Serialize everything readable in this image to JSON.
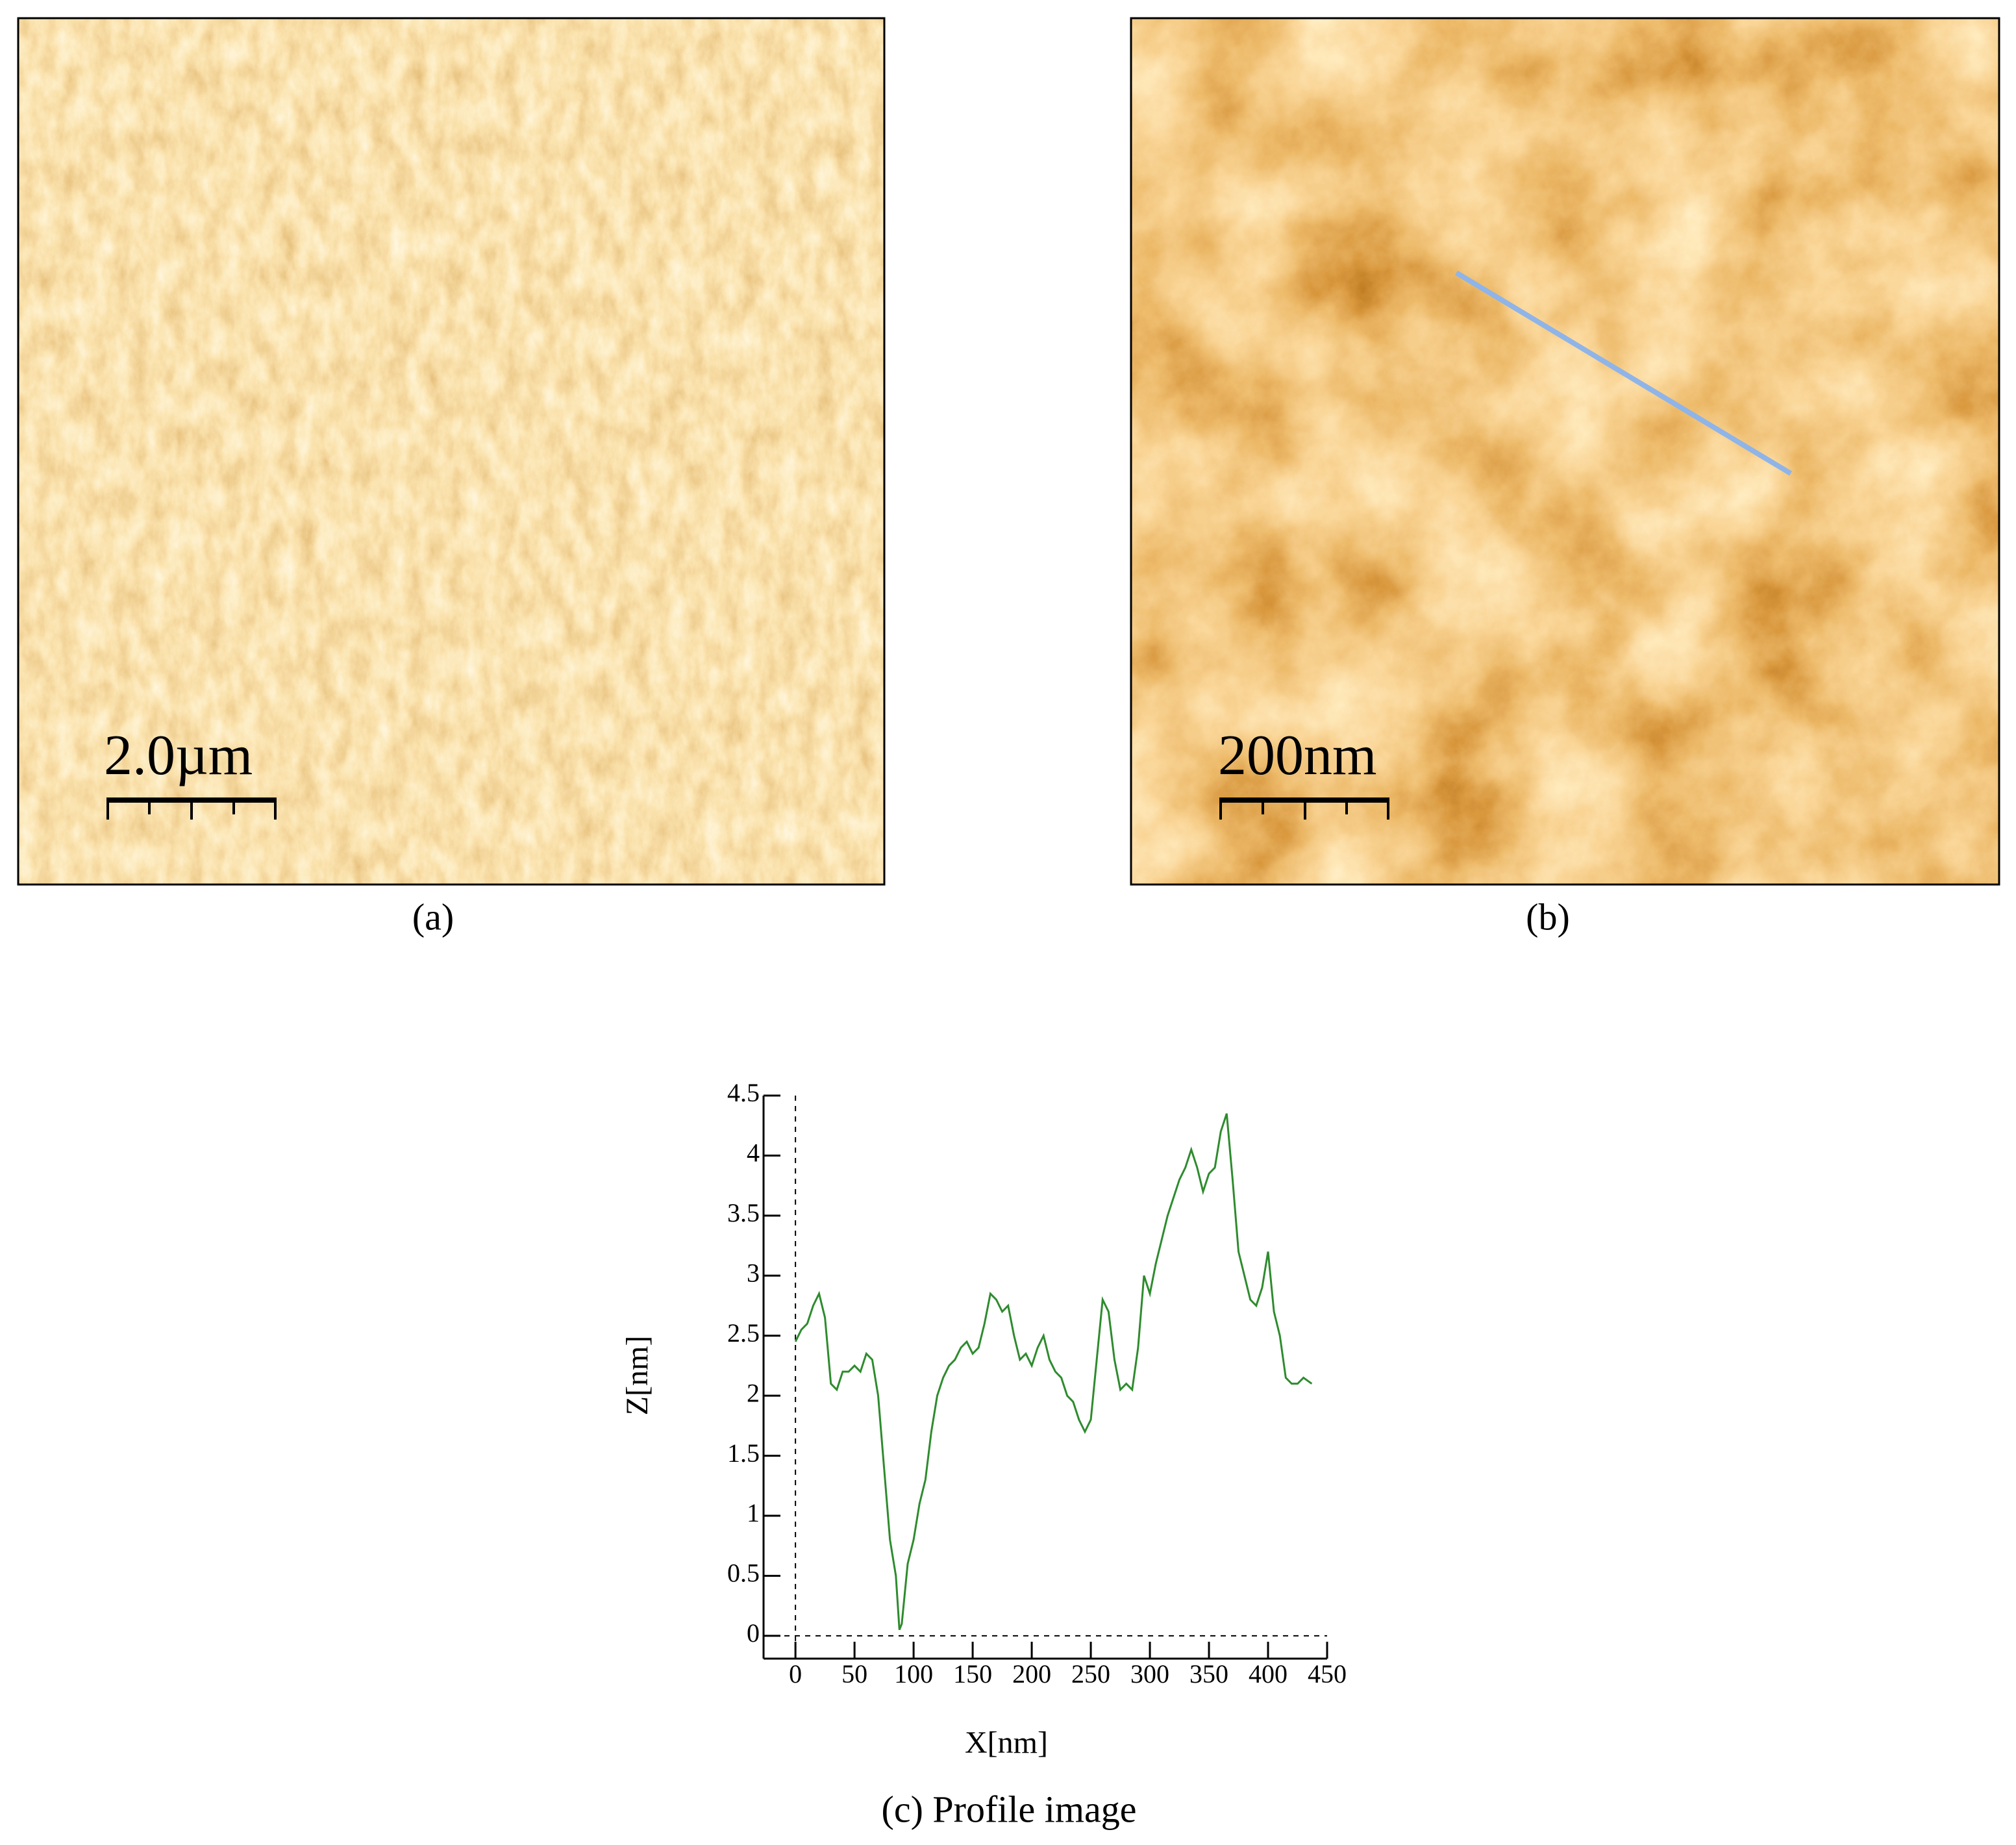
{
  "panels": [
    {
      "scale_bar": "2.0µm",
      "caption": "(a)"
    },
    {
      "scale_bar": "200nm",
      "caption": "(b)"
    }
  ],
  "chart_data": {
    "type": "line",
    "caption": "(c) Profile image",
    "x_label": "X[nm]",
    "y_label": "Z[nm]",
    "xlim": [
      -27,
      450
    ],
    "ylim": [
      -0.19,
      4.5
    ],
    "xticks": [
      0,
      50,
      100,
      150,
      200,
      250,
      300,
      350,
      400,
      450
    ],
    "yticks": [
      0,
      0.5,
      1,
      1.5,
      2,
      2.5,
      3,
      3.5,
      4,
      4.5
    ],
    "series": [
      {
        "color": "#2e8b2e",
        "x": [
          0,
          5,
          10,
          15,
          20,
          25,
          30,
          35,
          40,
          45,
          50,
          55,
          60,
          65,
          70,
          75,
          80,
          85,
          88,
          90,
          95,
          100,
          105,
          110,
          115,
          120,
          125,
          130,
          135,
          140,
          145,
          150,
          155,
          160,
          165,
          170,
          175,
          180,
          185,
          190,
          195,
          200,
          205,
          210,
          215,
          220,
          225,
          230,
          235,
          240,
          245,
          250,
          255,
          260,
          265,
          270,
          275,
          280,
          285,
          290,
          295,
          300,
          305,
          310,
          315,
          320,
          325,
          330,
          335,
          340,
          345,
          350,
          355,
          360,
          365,
          370,
          375,
          380,
          385,
          390,
          395,
          400,
          405,
          410,
          415,
          420,
          425,
          430,
          437
        ],
        "values": [
          2.45,
          2.55,
          2.6,
          2.75,
          2.85,
          2.65,
          2.1,
          2.05,
          2.2,
          2.2,
          2.25,
          2.2,
          2.35,
          2.3,
          2.0,
          1.4,
          0.8,
          0.5,
          0.05,
          0.1,
          0.6,
          0.8,
          1.1,
          1.3,
          1.7,
          2.0,
          2.15,
          2.25,
          2.3,
          2.4,
          2.45,
          2.35,
          2.4,
          2.6,
          2.85,
          2.8,
          2.7,
          2.75,
          2.5,
          2.3,
          2.35,
          2.25,
          2.4,
          2.5,
          2.3,
          2.2,
          2.15,
          2.0,
          1.95,
          1.8,
          1.7,
          1.8,
          2.3,
          2.8,
          2.7,
          2.3,
          2.05,
          2.1,
          2.05,
          2.4,
          3.0,
          2.85,
          3.1,
          3.3,
          3.5,
          3.65,
          3.8,
          3.9,
          4.05,
          3.9,
          3.7,
          3.85,
          3.9,
          4.2,
          4.35,
          3.8,
          3.2,
          3.0,
          2.8,
          2.75,
          2.9,
          3.2,
          2.7,
          2.5,
          2.15,
          2.1,
          2.1,
          2.15,
          2.1
        ]
      }
    ]
  }
}
